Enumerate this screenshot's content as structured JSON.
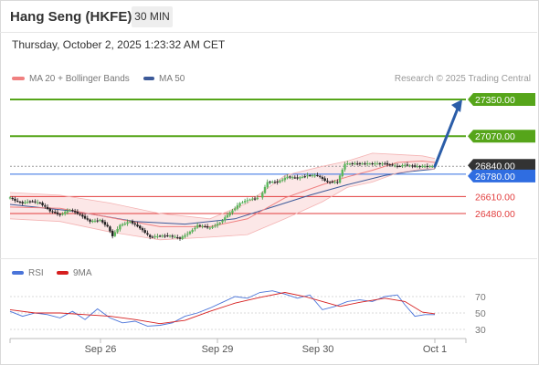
{
  "header": {
    "symbol": "Hang Seng (HKFE)",
    "interval": "30 MIN",
    "datetime": "Thursday, October 2, 2025 1:23:32 AM CET"
  },
  "legend": {
    "ma20": "MA 20 + Bollinger Bands",
    "ma50": "MA 50",
    "ma20_color": "#f08080",
    "ma50_color": "#3d5a99",
    "credit": "Research © 2025 Trading Central"
  },
  "rsi_legend": {
    "rsi": "RSI",
    "ma9": "9MA",
    "rsi_color": "#4a74d9",
    "ma9_color": "#d61f1f"
  },
  "chart_data": [
    {
      "type": "candlestick",
      "title": "Hang Seng (HKFE)",
      "y_range": [
        26230,
        27440
      ],
      "x_ticks": [
        "Sep 26",
        "Sep 29",
        "Sep 30",
        "Oct 1"
      ],
      "levels": [
        {
          "value": 27350.0,
          "label": "27350.00",
          "kind": "resistance",
          "color": "#56a51a"
        },
        {
          "value": 27070.0,
          "label": "27070.00",
          "kind": "resistance",
          "color": "#56a51a"
        },
        {
          "value": 26840.0,
          "label": "26840.00",
          "kind": "last",
          "color": "#333333"
        },
        {
          "value": 26780.0,
          "label": "26780.00",
          "kind": "pivot",
          "color": "#2f6de1"
        },
        {
          "value": 26610.0,
          "label": "26610.00",
          "kind": "support",
          "color": "#e23d3d"
        },
        {
          "value": 26480.0,
          "label": "26480.00",
          "kind": "support",
          "color": "#e23d3d"
        }
      ],
      "arrow": {
        "from": 26840,
        "to": 27350,
        "direction": "up"
      },
      "price_path": [
        [
          0,
          26600
        ],
        [
          3,
          26570
        ],
        [
          5,
          26560
        ],
        [
          8,
          26575
        ],
        [
          12,
          26560
        ],
        [
          16,
          26500
        ],
        [
          20,
          26470
        ],
        [
          24,
          26510
        ],
        [
          28,
          26470
        ],
        [
          32,
          26420
        ],
        [
          36,
          26430
        ],
        [
          39,
          26380
        ],
        [
          41,
          26310
        ],
        [
          44,
          26390
        ],
        [
          48,
          26420
        ],
        [
          52,
          26370
        ],
        [
          56,
          26300
        ],
        [
          60,
          26310
        ],
        [
          64,
          26310
        ],
        [
          68,
          26290
        ],
        [
          72,
          26340
        ],
        [
          75,
          26390
        ],
        [
          78,
          26380
        ],
        [
          80,
          26370
        ],
        [
          84,
          26410
        ],
        [
          87,
          26470
        ],
        [
          90,
          26520
        ],
        [
          92,
          26560
        ],
        [
          96,
          26590
        ],
        [
          100,
          26600
        ],
        [
          103,
          26720
        ],
        [
          107,
          26720
        ],
        [
          111,
          26760
        ],
        [
          115,
          26750
        ],
        [
          119,
          26770
        ],
        [
          123,
          26770
        ],
        [
          127,
          26720
        ],
        [
          131,
          26720
        ],
        [
          134,
          26860
        ],
        [
          138,
          26860
        ],
        [
          142,
          26860
        ],
        [
          146,
          26860
        ],
        [
          150,
          26860
        ],
        [
          155,
          26840
        ],
        [
          158,
          26850
        ],
        [
          162,
          26840
        ],
        [
          166,
          26840
        ],
        [
          170,
          26840
        ]
      ],
      "price_breaks": [
        100
      ],
      "ma20_path": [
        [
          0,
          26530
        ],
        [
          20,
          26520
        ],
        [
          40,
          26450
        ],
        [
          60,
          26380
        ],
        [
          80,
          26380
        ],
        [
          95,
          26440
        ],
        [
          110,
          26600
        ],
        [
          125,
          26700
        ],
        [
          135,
          26760
        ],
        [
          145,
          26810
        ],
        [
          155,
          26870
        ],
        [
          165,
          26880
        ],
        [
          170,
          26870
        ]
      ],
      "ma50_path": [
        [
          0,
          26550
        ],
        [
          25,
          26500
        ],
        [
          50,
          26420
        ],
        [
          70,
          26400
        ],
        [
          90,
          26440
        ],
        [
          105,
          26530
        ],
        [
          120,
          26620
        ],
        [
          135,
          26700
        ],
        [
          150,
          26770
        ],
        [
          160,
          26800
        ],
        [
          170,
          26820
        ]
      ],
      "bb_upper": [
        [
          0,
          26640
        ],
        [
          20,
          26620
        ],
        [
          40,
          26560
        ],
        [
          60,
          26480
        ],
        [
          80,
          26440
        ],
        [
          95,
          26560
        ],
        [
          110,
          26770
        ],
        [
          125,
          26840
        ],
        [
          135,
          26880
        ],
        [
          145,
          26940
        ],
        [
          155,
          26930
        ],
        [
          165,
          26920
        ],
        [
          170,
          26900
        ]
      ],
      "bb_lower": [
        [
          0,
          26440
        ],
        [
          20,
          26420
        ],
        [
          40,
          26340
        ],
        [
          60,
          26280
        ],
        [
          80,
          26300
        ],
        [
          95,
          26320
        ],
        [
          110,
          26440
        ],
        [
          125,
          26570
        ],
        [
          135,
          26680
        ],
        [
          145,
          26720
        ],
        [
          155,
          26790
        ],
        [
          165,
          26820
        ],
        [
          170,
          26820
        ]
      ]
    },
    {
      "type": "line",
      "title": "RSI",
      "y_range": [
        20,
        80
      ],
      "y_ticks": [
        70,
        50,
        30
      ],
      "series": [
        {
          "name": "RSI",
          "points": [
            [
              0,
              52
            ],
            [
              5,
              46
            ],
            [
              10,
              50
            ],
            [
              15,
              48
            ],
            [
              20,
              44
            ],
            [
              25,
              52
            ],
            [
              30,
              42
            ],
            [
              35,
              55
            ],
            [
              40,
              44
            ],
            [
              45,
              38
            ],
            [
              50,
              40
            ],
            [
              55,
              34
            ],
            [
              60,
              35
            ],
            [
              65,
              38
            ],
            [
              70,
              46
            ],
            [
              75,
              50
            ],
            [
              80,
              56
            ],
            [
              85,
              63
            ],
            [
              90,
              70
            ],
            [
              95,
              68
            ],
            [
              100,
              75
            ],
            [
              105,
              77
            ],
            [
              110,
              73
            ],
            [
              115,
              68
            ],
            [
              120,
              72
            ],
            [
              125,
              54
            ],
            [
              130,
              58
            ],
            [
              135,
              64
            ],
            [
              140,
              66
            ],
            [
              145,
              64
            ],
            [
              150,
              70
            ],
            [
              155,
              72
            ],
            [
              158,
              60
            ],
            [
              162,
              46
            ],
            [
              166,
              48
            ],
            [
              170,
              48
            ]
          ]
        },
        {
          "name": "9MA",
          "points": [
            [
              0,
              54
            ],
            [
              10,
              50
            ],
            [
              20,
              50
            ],
            [
              30,
              48
            ],
            [
              40,
              46
            ],
            [
              50,
              42
            ],
            [
              60,
              37
            ],
            [
              70,
              41
            ],
            [
              80,
              52
            ],
            [
              90,
              62
            ],
            [
              100,
              69
            ],
            [
              110,
              75
            ],
            [
              118,
              70
            ],
            [
              125,
              64
            ],
            [
              132,
              58
            ],
            [
              140,
              63
            ],
            [
              150,
              68
            ],
            [
              158,
              64
            ],
            [
              165,
              51
            ],
            [
              170,
              49
            ]
          ]
        }
      ]
    }
  ]
}
